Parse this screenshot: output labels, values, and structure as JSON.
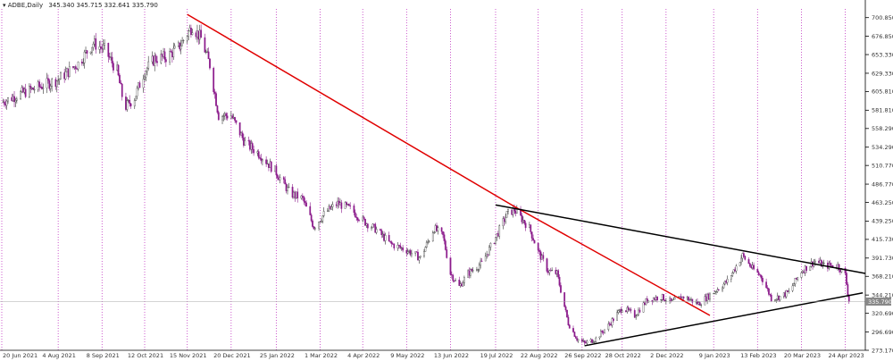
{
  "header": {
    "symbol": "ADBE,Daily",
    "ohlc": "345.340 345.715 332.641 335.790"
  },
  "colors": {
    "bull": "#ffffff",
    "bull_outline": "#000000",
    "bear": "#8b1a8b",
    "vgrid": "#c033c0",
    "red_trend": "#e00000",
    "black_trend": "#000000",
    "price_line": "#aaaaaa",
    "price_box": "#888888"
  },
  "chart_data": {
    "type": "candlestick",
    "symbol": "ADBE",
    "timeframe": "Daily",
    "last_price": 335.79,
    "last_price_label": "335.790",
    "ylim": [
      273.17,
      712.0
    ],
    "y_ticks": [
      700.85,
      676.85,
      653.33,
      629.33,
      605.81,
      581.81,
      558.29,
      534.29,
      510.77,
      486.77,
      463.25,
      439.25,
      415.73,
      391.73,
      368.21,
      344.21,
      320.69,
      296.69,
      273.17
    ],
    "y_tick_labels": [
      "700.850",
      "676.850",
      "653.330",
      "629.330",
      "605.810",
      "581.810",
      "558.290",
      "534.290",
      "510.770",
      "486.770",
      "463.250",
      "439.250",
      "415.730",
      "391.730",
      "368.210",
      "344.210",
      "320.690",
      "296.690",
      "273.170"
    ],
    "x_start": "2021-06-20",
    "x_end": "2023-05-10",
    "x_ticks": [
      "2021-06-20",
      "2021-08-04",
      "2021-09-08",
      "2021-10-12",
      "2021-11-15",
      "2021-12-20",
      "2022-01-25",
      "2022-03-01",
      "2022-04-04",
      "2022-05-09",
      "2022-06-13",
      "2022-07-19",
      "2022-08-22",
      "2022-09-26",
      "2022-10-28",
      "2022-12-02",
      "2023-01-09",
      "2023-02-13",
      "2023-03-20",
      "2023-04-24"
    ],
    "x_tick_labels": [
      "20 Jun 2021",
      "4 Aug 2021",
      "8 Sep 2021",
      "12 Oct 2021",
      "15 Nov 2021",
      "20 Dec 2021",
      "25 Jan 2022",
      "1 Mar 2022",
      "4 Apr 2022",
      "9 May 2022",
      "13 Jun 2022",
      "19 Jul 2022",
      "22 Aug 2022",
      "26 Sep 2022",
      "28 Oct 2022",
      "2 Dec 2022",
      "9 Jan 2023",
      "13 Feb 2023",
      "20 Mar 2023",
      "24 Apr 2023"
    ],
    "price_path": [
      [
        "2021-06-20",
        592
      ],
      [
        "2021-07-05",
        603
      ],
      [
        "2021-07-20",
        612
      ],
      [
        "2021-08-04",
        621
      ],
      [
        "2021-08-20",
        642
      ],
      [
        "2021-09-01",
        668
      ],
      [
        "2021-09-10",
        660
      ],
      [
        "2021-09-20",
        632
      ],
      [
        "2021-09-26",
        585
      ],
      [
        "2021-10-04",
        598
      ],
      [
        "2021-10-12",
        632
      ],
      [
        "2021-10-20",
        648
      ],
      [
        "2021-10-29",
        650
      ],
      [
        "2021-11-08",
        662
      ],
      [
        "2021-11-19",
        690
      ],
      [
        "2021-11-26",
        674
      ],
      [
        "2021-12-03",
        640
      ],
      [
        "2021-12-10",
        575
      ],
      [
        "2021-12-20",
        575
      ],
      [
        "2021-12-31",
        540
      ],
      [
        "2022-01-12",
        525
      ],
      [
        "2022-01-25",
        502
      ],
      [
        "2022-02-05",
        475
      ],
      [
        "2022-02-15",
        468
      ],
      [
        "2022-02-24",
        432
      ],
      [
        "2022-03-05",
        450
      ],
      [
        "2022-03-15",
        462
      ],
      [
        "2022-03-25",
        455
      ],
      [
        "2022-04-04",
        440
      ],
      [
        "2022-04-15",
        428
      ],
      [
        "2022-04-26",
        410
      ],
      [
        "2022-05-09",
        402
      ],
      [
        "2022-05-20",
        392
      ],
      [
        "2022-05-31",
        430
      ],
      [
        "2022-06-07",
        420
      ],
      [
        "2022-06-13",
        372
      ],
      [
        "2022-06-20",
        355
      ],
      [
        "2022-06-27",
        372
      ],
      [
        "2022-07-08",
        385
      ],
      [
        "2022-07-19",
        418
      ],
      [
        "2022-07-28",
        448
      ],
      [
        "2022-08-03",
        454
      ],
      [
        "2022-08-15",
        430
      ],
      [
        "2022-08-22",
        400
      ],
      [
        "2022-08-30",
        375
      ],
      [
        "2022-09-06",
        372
      ],
      [
        "2022-09-15",
        308
      ],
      [
        "2022-09-22",
        288
      ],
      [
        "2022-09-28",
        282
      ],
      [
        "2022-10-07",
        288
      ],
      [
        "2022-10-17",
        305
      ],
      [
        "2022-10-28",
        328
      ],
      [
        "2022-11-07",
        318
      ],
      [
        "2022-11-17",
        338
      ],
      [
        "2022-11-28",
        342
      ],
      [
        "2022-12-06",
        335
      ],
      [
        "2022-12-16",
        342
      ],
      [
        "2022-12-28",
        333
      ],
      [
        "2023-01-09",
        348
      ],
      [
        "2023-01-20",
        362
      ],
      [
        "2023-02-01",
        395
      ],
      [
        "2023-02-09",
        378
      ],
      [
        "2023-02-16",
        368
      ],
      [
        "2023-02-24",
        340
      ],
      [
        "2023-03-03",
        342
      ],
      [
        "2023-03-10",
        348
      ],
      [
        "2023-03-20",
        375
      ],
      [
        "2023-03-31",
        388
      ],
      [
        "2023-04-07",
        382
      ],
      [
        "2023-04-18",
        382
      ],
      [
        "2023-04-24",
        370
      ],
      [
        "2023-04-27",
        335.79
      ]
    ],
    "trendlines": [
      {
        "color": "red",
        "from": [
          "2021-11-15",
          705
        ],
        "to": [
          "2022-08-03",
          458
        ]
      },
      {
        "color": "red",
        "from": [
          "2022-08-03",
          458
        ],
        "to": [
          "2023-01-06",
          318
        ]
      },
      {
        "color": "black",
        "from": [
          "2022-07-19",
          460
        ],
        "to": [
          "2023-05-10",
          372
        ]
      },
      {
        "color": "black",
        "from": [
          "2022-09-28",
          279
        ],
        "to": [
          "2023-05-08",
          347
        ]
      }
    ],
    "grid": "vertical-dotted",
    "legend": "none"
  }
}
